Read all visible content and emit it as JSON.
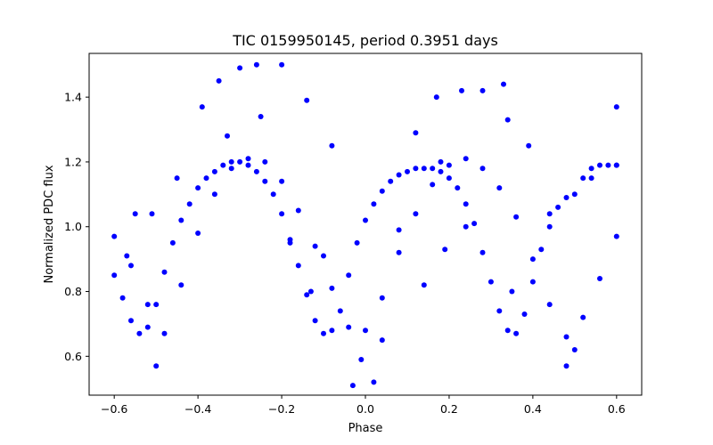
{
  "chart_data": {
    "type": "scatter",
    "title": "TIC 0159950145, period 0.3951 days",
    "xlabel": "Phase",
    "ylabel": "Normalized PDC flux",
    "xlim": [
      -0.66,
      0.66
    ],
    "ylim": [
      0.48,
      1.535
    ],
    "x_ticks": [
      -0.6,
      -0.4,
      -0.2,
      0.0,
      0.2,
      0.4,
      0.6
    ],
    "x_tick_labels": [
      "−0.6",
      "−0.4",
      "−0.2",
      "0.0",
      "0.2",
      "0.4",
      "0.6"
    ],
    "y_ticks": [
      0.6,
      0.8,
      1.0,
      1.2,
      1.4
    ],
    "y_tick_labels": [
      "0.6",
      "0.8",
      "1.0",
      "1.2",
      "1.4"
    ],
    "grid": false,
    "marker_color": "#0000ff",
    "series": [
      {
        "x": [
          -0.6,
          -0.58,
          -0.56,
          -0.54,
          -0.52,
          -0.5,
          -0.48,
          -0.46,
          -0.44,
          -0.42,
          -0.4,
          -0.38,
          -0.36,
          -0.34,
          -0.32,
          -0.3,
          -0.28,
          -0.26,
          -0.24,
          -0.22,
          -0.2,
          -0.18,
          -0.16,
          -0.14,
          -0.12,
          -0.1,
          -0.08,
          -0.06,
          -0.04,
          -0.02,
          0.0,
          0.02,
          0.04,
          0.06,
          0.08,
          0.1,
          0.12,
          0.14,
          0.16,
          0.18,
          0.2,
          0.22,
          0.24,
          0.26,
          0.28,
          0.3,
          0.32,
          0.34,
          0.36,
          0.38,
          0.4,
          0.42,
          0.44,
          0.46,
          0.48,
          0.5,
          0.52,
          0.54,
          0.56,
          0.58,
          0.6
        ],
        "y": [
          0.85,
          0.78,
          0.71,
          0.67,
          0.69,
          0.76,
          0.86,
          0.95,
          1.02,
          1.07,
          1.12,
          1.15,
          1.17,
          1.19,
          1.2,
          1.2,
          1.19,
          1.17,
          1.14,
          1.1,
          1.04,
          0.96,
          0.88,
          0.79,
          0.71,
          0.67,
          0.68,
          0.74,
          0.85,
          0.95,
          1.02,
          1.07,
          1.11,
          1.14,
          1.16,
          1.17,
          1.18,
          1.18,
          1.18,
          1.17,
          1.15,
          1.12,
          1.07,
          1.01,
          0.92,
          0.83,
          0.74,
          0.68,
          0.67,
          0.73,
          0.83,
          0.93,
          1.0,
          1.06,
          1.09,
          1.1,
          1.15,
          1.18,
          1.19,
          1.19,
          1.19
        ]
      },
      {
        "x": [
          -0.6,
          -0.56,
          -0.52,
          -0.48,
          -0.44,
          -0.4,
          -0.36,
          -0.32,
          -0.28,
          -0.24,
          -0.2,
          -0.16,
          -0.12,
          -0.08,
          -0.04,
          0.0,
          0.04,
          0.08,
          0.12,
          0.16,
          0.2,
          0.24,
          0.28,
          0.32,
          0.36,
          0.4,
          0.44,
          0.48,
          0.52,
          0.56,
          0.6
        ],
        "y": [
          0.97,
          0.88,
          0.76,
          0.67,
          0.82,
          0.98,
          1.1,
          1.18,
          1.21,
          1.2,
          1.14,
          1.05,
          0.94,
          0.81,
          0.69,
          0.68,
          0.78,
          0.92,
          1.04,
          1.13,
          1.19,
          1.21,
          1.18,
          1.12,
          1.03,
          0.9,
          0.76,
          0.66,
          0.72,
          0.84,
          0.97
        ]
      },
      {
        "x": [
          -0.57,
          -0.55,
          -0.51,
          -0.5,
          -0.45,
          -0.39,
          -0.35,
          -0.33,
          -0.3,
          -0.26,
          -0.25,
          -0.2,
          -0.18,
          -0.14,
          -0.13,
          -0.1,
          -0.08,
          -0.03,
          -0.01,
          0.02,
          0.04,
          0.08,
          0.12,
          0.14,
          0.17,
          0.18,
          0.19,
          0.23,
          0.24,
          0.28,
          0.33,
          0.34,
          0.35,
          0.39,
          0.44,
          0.48,
          0.5,
          0.54,
          0.6,
          0.6
        ],
        "y": [
          0.91,
          1.04,
          1.04,
          0.57,
          1.15,
          1.37,
          1.45,
          1.28,
          1.49,
          1.5,
          1.34,
          1.5,
          0.95,
          1.39,
          0.8,
          0.91,
          1.25,
          0.51,
          0.59,
          0.52,
          0.65,
          0.99,
          1.29,
          0.82,
          1.4,
          1.2,
          0.93,
          1.42,
          1.0,
          1.42,
          1.44,
          1.33,
          0.8,
          1.25,
          1.04,
          0.57,
          0.62,
          1.15,
          1.37,
          1.19
        ]
      }
    ]
  }
}
